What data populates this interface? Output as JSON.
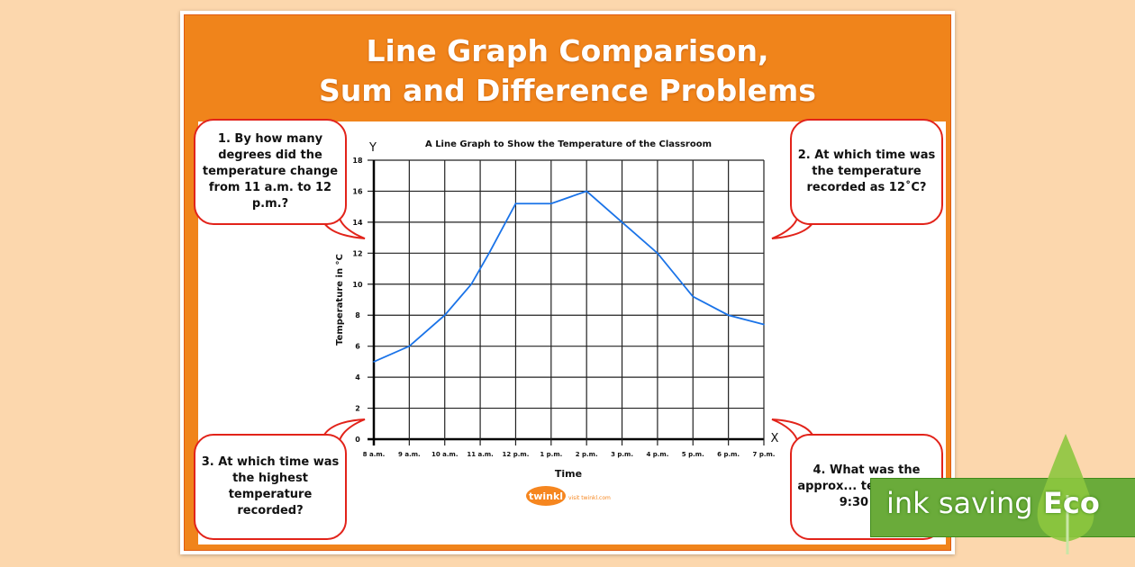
{
  "poster": {
    "title_line1": "Line Graph Comparison,",
    "title_line2": "Sum and Difference Problems",
    "questions": [
      "1. By how many degrees did the temperature change from 11 a.m. to 12 p.m.?",
      "2. At which time was the temperature recorded as 12˚C?",
      "3. At which time was the highest temperature recorded?",
      "4. What was the approx... temperat... 9:30 a..."
    ],
    "logo_text": "twinkl",
    "logo_url_text": "visit twinkl.com",
    "colors": {
      "orange": "#f0841b",
      "bubble_border": "#e2231a",
      "line": "#1a73e8",
      "background": "#fcd7ad"
    }
  },
  "eco_badge": {
    "text": "ink saving",
    "label": "Eco",
    "color": "#6aab3a"
  },
  "chart_data": {
    "type": "line",
    "title": "A Line Graph to Show the Temperature of the Classroom",
    "xlabel": "Time",
    "ylabel": "Temperature in °C",
    "x_axis_letter": "X",
    "y_axis_letter": "Y",
    "categories": [
      "8 a.m.",
      "9 a.m.",
      "10 a.m.",
      "11 a.m.",
      "12 p.m.",
      "1 p.m.",
      "2 p.m.",
      "3 p.m.",
      "4 p.m.",
      "5 p.m.",
      "6 p.m.",
      "7 p.m."
    ],
    "yticks": [
      0,
      2,
      4,
      6,
      8,
      10,
      12,
      14,
      16,
      18
    ],
    "ylim": [
      0,
      18
    ],
    "grid": true,
    "series": [
      {
        "points": [
          {
            "x": "8:00",
            "y": 5
          },
          {
            "x": "9:00",
            "y": 6
          },
          {
            "x": "10:00",
            "y": 8
          },
          {
            "x": "10:45",
            "y": 10
          },
          {
            "x": "11:15",
            "y": 12
          },
          {
            "x": "12:00",
            "y": 15.2
          },
          {
            "x": "13:00",
            "y": 15.2
          },
          {
            "x": "14:00",
            "y": 16
          },
          {
            "x": "15:00",
            "y": 14
          },
          {
            "x": "16:00",
            "y": 12
          },
          {
            "x": "17:00",
            "y": 9.2
          },
          {
            "x": "18:00",
            "y": 8
          },
          {
            "x": "19:00",
            "y": 7.4
          }
        ]
      }
    ]
  }
}
